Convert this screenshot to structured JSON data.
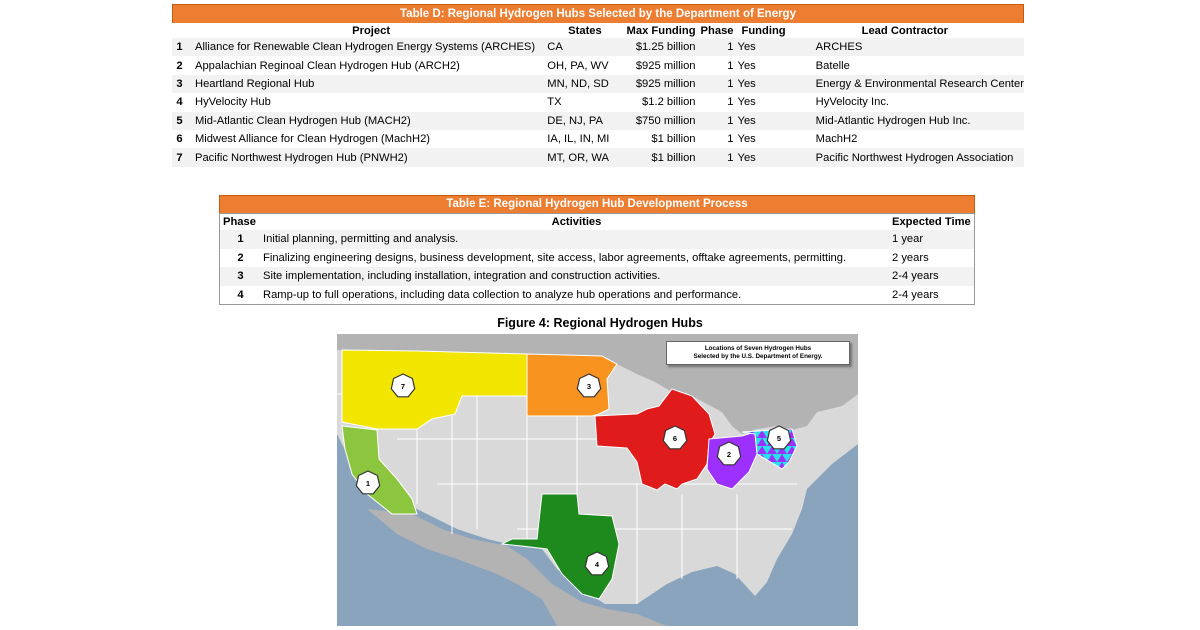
{
  "table_d": {
    "title": "Table D: Regional Hydrogen Hubs Selected by the Department of Energy",
    "headers": {
      "project": "Project",
      "states": "States",
      "max_funding": "Max Funding",
      "phase": "Phase",
      "funding": "Funding",
      "lead": "Lead Contractor"
    },
    "rows": [
      {
        "num": "1",
        "project": "Alliance for Renewable Clean Hydrogen Energy Systems (ARCHES)",
        "states": "CA",
        "max_funding": "$1.25 billion",
        "phase": "1",
        "funding": "Yes",
        "lead": "ARCHES"
      },
      {
        "num": "2",
        "project": "Appalachian Reginoal Clean Hydrogen Hub (ARCH2)",
        "states": "OH, PA, WV",
        "max_funding": "$925 million",
        "phase": "1",
        "funding": "Yes",
        "lead": "Batelle"
      },
      {
        "num": "3",
        "project": "Heartland Regional Hub",
        "states": "MN, ND, SD",
        "max_funding": "$925 million",
        "phase": "1",
        "funding": "Yes",
        "lead": "Energy & Environmental Research Center"
      },
      {
        "num": "4",
        "project": "HyVelocity Hub",
        "states": "TX",
        "max_funding": "$1.2 billion",
        "phase": "1",
        "funding": "Yes",
        "lead": "HyVelocity Inc."
      },
      {
        "num": "5",
        "project": "Mid-Atlantic Clean Hydrogen Hub (MACH2)",
        "states": "DE, NJ, PA",
        "max_funding": "$750 million",
        "phase": "1",
        "funding": "Yes",
        "lead": "Mid-Atlantic Hydrogen Hub Inc."
      },
      {
        "num": "6",
        "project": "Midwest Alliance for Clean Hydrogen (MachH2)",
        "states": "IA, IL, IN, MI",
        "max_funding": "$1 billion",
        "phase": "1",
        "funding": "Yes",
        "lead": "MachH2"
      },
      {
        "num": "7",
        "project": "Pacific Northwest Hydrogen Hub (PNWH2)",
        "states": "MT, OR, WA",
        "max_funding": "$1 billion",
        "phase": "1",
        "funding": "Yes",
        "lead": "Pacific Northwest Hydrogen Association"
      }
    ]
  },
  "table_e": {
    "title": "Table E: Regional Hydrogen Hub Development Process",
    "headers": {
      "phase": "Phase",
      "activities": "Activities",
      "time": "Expected Time"
    },
    "rows": [
      {
        "phase": "1",
        "activity": "Initial planning, permitting and analysis.",
        "time": "1 year"
      },
      {
        "phase": "2",
        "activity": "Finalizing engineering designs, business development, site access, labor agreements, offtake agreements, permitting.",
        "time": "2 years"
      },
      {
        "phase": "3",
        "activity": "Site implementation, including installation, integration and construction activities.",
        "time": "2-4 years"
      },
      {
        "phase": "4",
        "activity": "Ramp-up to full operations, including data collection to analyze hub operations and performance.",
        "time": "2-4 years"
      }
    ]
  },
  "figure": {
    "title": "Figure 4: Regional Hydrogen Hubs",
    "legend_line1": "Locations of Seven Hydrogen Hubs",
    "legend_line2": "Selected by the U.S. Department of Energy.",
    "hubs": [
      {
        "label": "1",
        "region": "CA",
        "color": "#8cc63f"
      },
      {
        "label": "2",
        "region": "OH, PA, WV",
        "color": "#9b30ff"
      },
      {
        "label": "3",
        "region": "MN, ND, SD",
        "color": "#f7931e"
      },
      {
        "label": "4",
        "region": "TX",
        "color": "#1e8a1e"
      },
      {
        "label": "5",
        "region": "DE, NJ, PA",
        "color": "#29e0f0"
      },
      {
        "label": "6",
        "region": "IA, IL, IN, MI",
        "color": "#e01b1b"
      },
      {
        "label": "7",
        "region": "MT, OR, WA",
        "color": "#f2e600"
      }
    ],
    "colors": {
      "ocean": "#8aa4bd",
      "land_us": "#d9d9d9",
      "land_other": "#b3b3b3",
      "border": "#ffffff"
    }
  }
}
